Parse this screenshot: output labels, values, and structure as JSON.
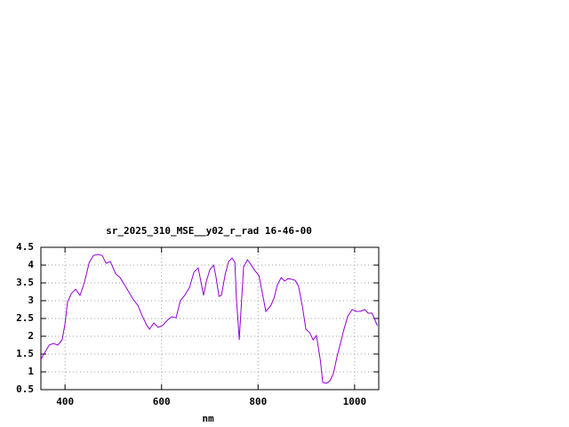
{
  "chart_data": {
    "type": "line",
    "title": "sr_2025_310_MSE__y02_r_rad 16-46-00",
    "x_label": "nm",
    "x": [
      350,
      352,
      367,
      376,
      385,
      394,
      400,
      405,
      413,
      422,
      431,
      440,
      450,
      459,
      468,
      477,
      485,
      494,
      505,
      514,
      523,
      532,
      542,
      551,
      560,
      569,
      575,
      584,
      593,
      602,
      612,
      621,
      630,
      639,
      648,
      658,
      667,
      676,
      682,
      687,
      693,
      700,
      708,
      713,
      719,
      724,
      732,
      739,
      746,
      752,
      755,
      759,
      761,
      765,
      770,
      778,
      785,
      792,
      802,
      809,
      816,
      826,
      833,
      840,
      848,
      855,
      862,
      870,
      877,
      884,
      892,
      899,
      907,
      914,
      921,
      929,
      934,
      942,
      949,
      956,
      964,
      971,
      978,
      986,
      995,
      1003,
      1012,
      1021,
      1028,
      1036,
      1041,
      1047
    ],
    "series": [
      {
        "name": "sr_2025_310_MSE__y02_r_rad",
        "color": "#9400d3",
        "values": [
          1.33,
          1.4,
          1.75,
          1.8,
          1.75,
          1.9,
          2.35,
          2.95,
          3.2,
          3.32,
          3.15,
          3.5,
          4.07,
          4.27,
          4.3,
          4.27,
          4.05,
          4.1,
          3.75,
          3.65,
          3.45,
          3.25,
          3.02,
          2.87,
          2.57,
          2.32,
          2.2,
          2.37,
          2.25,
          2.3,
          2.45,
          2.55,
          2.52,
          3.0,
          3.15,
          3.37,
          3.8,
          3.92,
          3.5,
          3.15,
          3.55,
          3.87,
          4.0,
          3.65,
          3.12,
          3.15,
          3.75,
          4.1,
          4.2,
          4.07,
          3.07,
          2.32,
          1.9,
          2.82,
          3.95,
          4.15,
          4.02,
          3.87,
          3.7,
          3.2,
          2.7,
          2.85,
          3.07,
          3.45,
          3.65,
          3.55,
          3.62,
          3.6,
          3.57,
          3.4,
          2.82,
          2.2,
          2.1,
          1.9,
          2.02,
          1.33,
          0.7,
          0.68,
          0.75,
          0.95,
          1.45,
          1.82,
          2.2,
          2.57,
          2.75,
          2.7,
          2.7,
          2.75,
          2.65,
          2.65,
          2.5,
          2.3
        ]
      }
    ],
    "xlim": [
      350,
      1050
    ],
    "xticks": [
      400,
      600,
      800,
      1000
    ],
    "ylim": [
      0.5,
      4.5
    ],
    "yticks": [
      0.5,
      1,
      1.5,
      2,
      2.5,
      3,
      3.5,
      4,
      4.5
    ],
    "grid": true
  }
}
